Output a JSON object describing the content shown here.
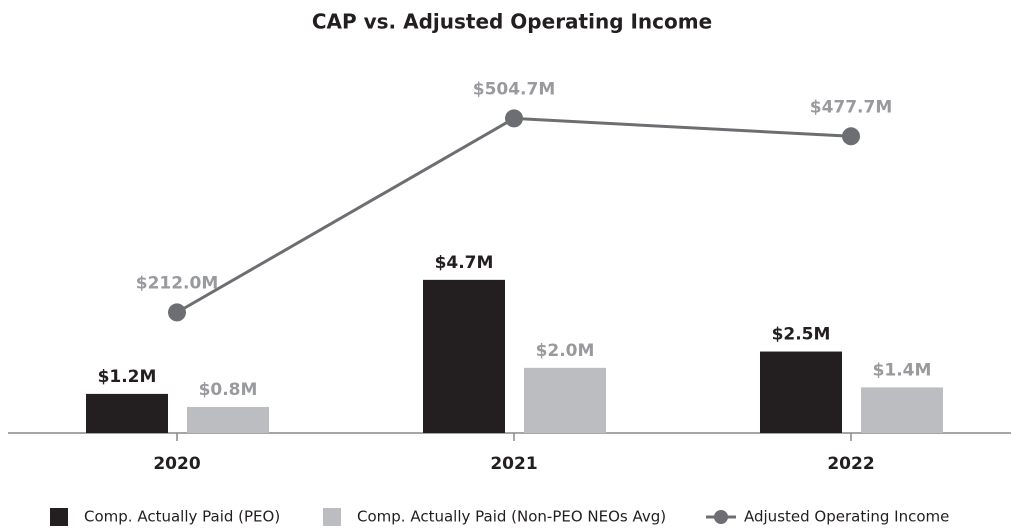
{
  "chart_data": {
    "type": "bar",
    "title": "CAP vs. Adjusted Operating Income",
    "categories": [
      "2020",
      "2021",
      "2022"
    ],
    "ylim": [
      0,
      12
    ],
    "y2lim": [
      30,
      620
    ],
    "series": [
      {
        "name": "Comp. Actually Paid (PEO)",
        "type": "bar",
        "color": "#231f20",
        "values": [
          1.2,
          4.7,
          2.5
        ],
        "value_labels": [
          "$1.2M",
          "$4.7M",
          "$2.5M"
        ]
      },
      {
        "name": "Comp. Actually Paid (Non-PEO NEOs Avg)",
        "type": "bar",
        "color": "#bcbdc0",
        "values": [
          0.8,
          2.0,
          1.4
        ],
        "value_labels": [
          "$0.8M",
          "$2.0M",
          "$1.4M"
        ]
      },
      {
        "name": "Adjusted Operating Income",
        "type": "line",
        "axis": "y2",
        "color": "#6d6e71",
        "values": [
          212.0,
          504.7,
          477.7
        ],
        "value_labels": [
          "$212.0M",
          "$504.7M",
          "$477.7M"
        ]
      }
    ]
  }
}
